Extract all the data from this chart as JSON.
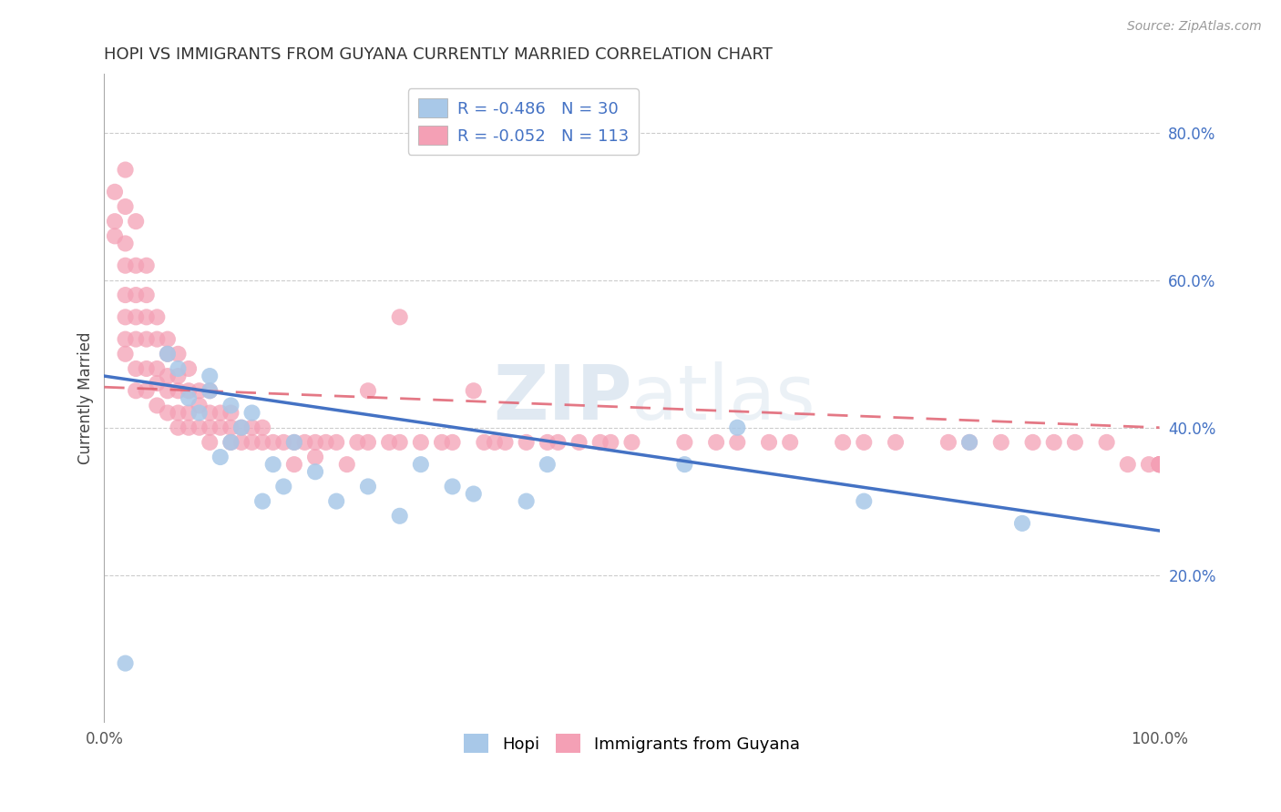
{
  "title": "HOPI VS IMMIGRANTS FROM GUYANA CURRENTLY MARRIED CORRELATION CHART",
  "source": "Source: ZipAtlas.com",
  "ylabel": "Currently Married",
  "xlim": [
    0.0,
    1.0
  ],
  "ylim": [
    0.0,
    0.88
  ],
  "ytick_values": [
    0.2,
    0.4,
    0.6,
    0.8
  ],
  "ytick_labels": [
    "20.0%",
    "40.0%",
    "60.0%",
    "80.0%"
  ],
  "legend_r_hopi": "-0.486",
  "legend_n_hopi": "30",
  "legend_r_guyana": "-0.052",
  "legend_n_guyana": "113",
  "hopi_color": "#a8c8e8",
  "guyana_color": "#f4a0b5",
  "hopi_line_color": "#4472c4",
  "guyana_line_color": "#e06070",
  "watermark_zip": "ZIP",
  "watermark_atlas": "atlas",
  "hopi_x": [
    0.02,
    0.06,
    0.07,
    0.08,
    0.09,
    0.1,
    0.1,
    0.11,
    0.12,
    0.13,
    0.14,
    0.15,
    0.16,
    0.17,
    0.18,
    0.2,
    0.22,
    0.25,
    0.28,
    0.3,
    0.33,
    0.35,
    0.4,
    0.42,
    0.55,
    0.6,
    0.72,
    0.82,
    0.87,
    0.12
  ],
  "hopi_y": [
    0.08,
    0.5,
    0.48,
    0.44,
    0.42,
    0.45,
    0.47,
    0.36,
    0.38,
    0.4,
    0.42,
    0.3,
    0.35,
    0.32,
    0.38,
    0.34,
    0.3,
    0.32,
    0.28,
    0.35,
    0.32,
    0.31,
    0.3,
    0.35,
    0.35,
    0.4,
    0.3,
    0.38,
    0.27,
    0.43
  ],
  "guyana_x": [
    0.01,
    0.01,
    0.01,
    0.02,
    0.02,
    0.02,
    0.02,
    0.02,
    0.02,
    0.02,
    0.02,
    0.03,
    0.03,
    0.03,
    0.03,
    0.03,
    0.03,
    0.03,
    0.04,
    0.04,
    0.04,
    0.04,
    0.04,
    0.04,
    0.05,
    0.05,
    0.05,
    0.05,
    0.05,
    0.06,
    0.06,
    0.06,
    0.06,
    0.06,
    0.07,
    0.07,
    0.07,
    0.07,
    0.07,
    0.08,
    0.08,
    0.08,
    0.08,
    0.09,
    0.09,
    0.09,
    0.1,
    0.1,
    0.1,
    0.1,
    0.11,
    0.11,
    0.12,
    0.12,
    0.12,
    0.13,
    0.13,
    0.14,
    0.14,
    0.15,
    0.15,
    0.16,
    0.17,
    0.18,
    0.18,
    0.19,
    0.2,
    0.2,
    0.21,
    0.22,
    0.23,
    0.24,
    0.25,
    0.25,
    0.27,
    0.28,
    0.28,
    0.3,
    0.32,
    0.33,
    0.35,
    0.36,
    0.37,
    0.38,
    0.4,
    0.42,
    0.43,
    0.45,
    0.47,
    0.48,
    0.5,
    0.55,
    0.58,
    0.6,
    0.63,
    0.65,
    0.7,
    0.72,
    0.75,
    0.8,
    0.82,
    0.85,
    0.88,
    0.9,
    0.92,
    0.95,
    0.97,
    0.99,
    1.0,
    1.0,
    1.0,
    1.0,
    1.0
  ],
  "guyana_y": [
    0.72,
    0.68,
    0.66,
    0.75,
    0.7,
    0.65,
    0.62,
    0.58,
    0.55,
    0.52,
    0.5,
    0.68,
    0.62,
    0.58,
    0.55,
    0.52,
    0.48,
    0.45,
    0.62,
    0.58,
    0.55,
    0.52,
    0.48,
    0.45,
    0.55,
    0.52,
    0.48,
    0.46,
    0.43,
    0.52,
    0.5,
    0.47,
    0.45,
    0.42,
    0.5,
    0.47,
    0.45,
    0.42,
    0.4,
    0.48,
    0.45,
    0.42,
    0.4,
    0.45,
    0.43,
    0.4,
    0.45,
    0.42,
    0.4,
    0.38,
    0.42,
    0.4,
    0.42,
    0.4,
    0.38,
    0.4,
    0.38,
    0.4,
    0.38,
    0.4,
    0.38,
    0.38,
    0.38,
    0.38,
    0.35,
    0.38,
    0.38,
    0.36,
    0.38,
    0.38,
    0.35,
    0.38,
    0.45,
    0.38,
    0.38,
    0.38,
    0.55,
    0.38,
    0.38,
    0.38,
    0.45,
    0.38,
    0.38,
    0.38,
    0.38,
    0.38,
    0.38,
    0.38,
    0.38,
    0.38,
    0.38,
    0.38,
    0.38,
    0.38,
    0.38,
    0.38,
    0.38,
    0.38,
    0.38,
    0.38,
    0.38,
    0.38,
    0.38,
    0.38,
    0.38,
    0.38,
    0.35,
    0.35,
    0.35,
    0.35,
    0.35,
    0.35,
    0.35
  ]
}
